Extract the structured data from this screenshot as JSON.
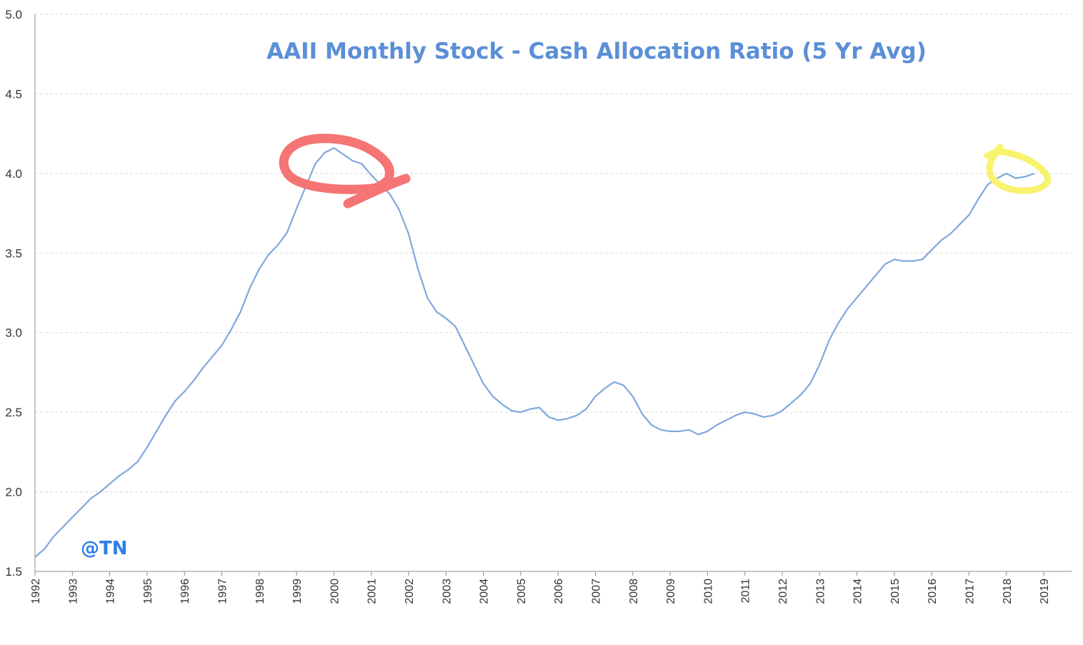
{
  "chart_data": {
    "type": "line",
    "title": "AAII Monthly Stock - Cash Allocation Ratio (5 Yr Avg)",
    "xlabel": "",
    "ylabel": "",
    "ylim": [
      1.5,
      5.0
    ],
    "xlim": [
      1992,
      2019.9
    ],
    "yticks": [
      "1.5",
      "2.0",
      "2.5",
      "3.0",
      "3.5",
      "4.0",
      "4.5",
      "5.0"
    ],
    "xticks": [
      "1992",
      "1993",
      "1994",
      "1995",
      "1996",
      "1997",
      "1998",
      "1999",
      "2000",
      "2001",
      "2002",
      "2003",
      "2004",
      "2005",
      "2006",
      "2007",
      "2008",
      "2009",
      "2010",
      "2011",
      "2012",
      "2013",
      "2014",
      "2015",
      "2016",
      "2017",
      "2018",
      "2019"
    ],
    "grid": true,
    "legend": "none",
    "series": [
      {
        "color": "#7fa8dc",
        "points": [
          [
            1992.0,
            1.59
          ],
          [
            1992.25,
            1.64
          ],
          [
            1992.5,
            1.72
          ],
          [
            1992.75,
            1.78
          ],
          [
            1993.0,
            1.84
          ],
          [
            1993.25,
            1.9
          ],
          [
            1993.5,
            1.96
          ],
          [
            1993.75,
            2.0
          ],
          [
            1994.0,
            2.05
          ],
          [
            1994.25,
            2.1
          ],
          [
            1994.5,
            2.14
          ],
          [
            1994.75,
            2.19
          ],
          [
            1995.0,
            2.28
          ],
          [
            1995.25,
            2.38
          ],
          [
            1995.5,
            2.48
          ],
          [
            1995.75,
            2.57
          ],
          [
            1996.0,
            2.63
          ],
          [
            1996.25,
            2.7
          ],
          [
            1996.5,
            2.78
          ],
          [
            1996.75,
            2.85
          ],
          [
            1997.0,
            2.92
          ],
          [
            1997.25,
            3.02
          ],
          [
            1997.5,
            3.13
          ],
          [
            1997.75,
            3.28
          ],
          [
            1998.0,
            3.4
          ],
          [
            1998.25,
            3.49
          ],
          [
            1998.5,
            3.55
          ],
          [
            1998.75,
            3.63
          ],
          [
            1999.0,
            3.78
          ],
          [
            1999.25,
            3.92
          ],
          [
            1999.5,
            4.06
          ],
          [
            1999.75,
            4.13
          ],
          [
            2000.0,
            4.16
          ],
          [
            2000.25,
            4.12
          ],
          [
            2000.5,
            4.08
          ],
          [
            2000.75,
            4.06
          ],
          [
            2001.0,
            3.99
          ],
          [
            2001.25,
            3.93
          ],
          [
            2001.5,
            3.87
          ],
          [
            2001.75,
            3.77
          ],
          [
            2002.0,
            3.62
          ],
          [
            2002.25,
            3.4
          ],
          [
            2002.5,
            3.22
          ],
          [
            2002.75,
            3.13
          ],
          [
            2003.0,
            3.09
          ],
          [
            2003.25,
            3.04
          ],
          [
            2003.5,
            2.92
          ],
          [
            2003.75,
            2.8
          ],
          [
            2004.0,
            2.68
          ],
          [
            2004.25,
            2.6
          ],
          [
            2004.5,
            2.55
          ],
          [
            2004.75,
            2.51
          ],
          [
            2005.0,
            2.5
          ],
          [
            2005.25,
            2.52
          ],
          [
            2005.5,
            2.53
          ],
          [
            2005.75,
            2.47
          ],
          [
            2006.0,
            2.45
          ],
          [
            2006.25,
            2.46
          ],
          [
            2006.5,
            2.48
          ],
          [
            2006.75,
            2.52
          ],
          [
            2007.0,
            2.6
          ],
          [
            2007.25,
            2.65
          ],
          [
            2007.5,
            2.69
          ],
          [
            2007.75,
            2.67
          ],
          [
            2008.0,
            2.6
          ],
          [
            2008.25,
            2.49
          ],
          [
            2008.5,
            2.42
          ],
          [
            2008.75,
            2.39
          ],
          [
            2009.0,
            2.38
          ],
          [
            2009.25,
            2.38
          ],
          [
            2009.5,
            2.39
          ],
          [
            2009.75,
            2.36
          ],
          [
            2010.0,
            2.38
          ],
          [
            2010.25,
            2.42
          ],
          [
            2010.5,
            2.45
          ],
          [
            2010.75,
            2.48
          ],
          [
            2011.0,
            2.5
          ],
          [
            2011.25,
            2.49
          ],
          [
            2011.5,
            2.47
          ],
          [
            2011.75,
            2.48
          ],
          [
            2012.0,
            2.51
          ],
          [
            2012.25,
            2.56
          ],
          [
            2012.5,
            2.61
          ],
          [
            2012.75,
            2.68
          ],
          [
            2013.0,
            2.8
          ],
          [
            2013.25,
            2.95
          ],
          [
            2013.5,
            3.06
          ],
          [
            2013.75,
            3.15
          ],
          [
            2014.0,
            3.22
          ],
          [
            2014.25,
            3.29
          ],
          [
            2014.5,
            3.36
          ],
          [
            2014.75,
            3.43
          ],
          [
            2015.0,
            3.46
          ],
          [
            2015.25,
            3.45
          ],
          [
            2015.5,
            3.45
          ],
          [
            2015.75,
            3.46
          ],
          [
            2016.0,
            3.52
          ],
          [
            2016.25,
            3.58
          ],
          [
            2016.5,
            3.62
          ],
          [
            2016.75,
            3.68
          ],
          [
            2017.0,
            3.74
          ],
          [
            2017.25,
            3.84
          ],
          [
            2017.5,
            3.93
          ],
          [
            2017.75,
            3.97
          ],
          [
            2018.0,
            4.0
          ],
          [
            2018.25,
            3.97
          ],
          [
            2018.5,
            3.98
          ],
          [
            2018.75,
            4.0
          ]
        ]
      }
    ],
    "annotations": [
      {
        "type": "hand-drawn-circle",
        "color": "#f57474",
        "x": 2000.2,
        "y": 4.05
      },
      {
        "type": "hand-drawn-circle",
        "color": "#f7f36d",
        "x": 2018.3,
        "y": 4.0
      }
    ]
  },
  "watermark": "@TN"
}
